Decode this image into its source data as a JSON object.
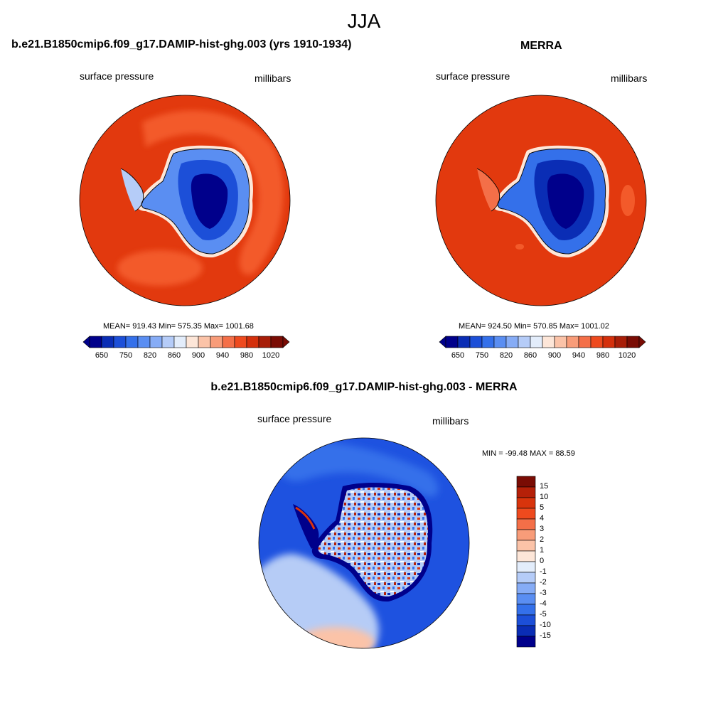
{
  "season": "JJA",
  "panels": [
    {
      "title": "b.e21.B1850cmip6.f09_g17.DAMIP-hist-ghg.003 (yrs 1910-1934)",
      "variable": "surface pressure",
      "units": "millibars",
      "stats": "MEAN= 919.43  Min= 575.35  Max= 1001.68",
      "mean": 919.43,
      "min": 575.35,
      "max": 1001.68
    },
    {
      "title": "MERRA",
      "variable": "surface pressure",
      "units": "millibars",
      "stats": "MEAN= 924.50  Min= 570.85  Max= 1001.02",
      "mean": 924.5,
      "min": 570.85,
      "max": 1001.02
    },
    {
      "title": "b.e21.B1850cmip6.f09_g17.DAMIP-hist-ghg.003 - MERRA",
      "variable": "surface pressure",
      "units": "millibars",
      "stats": "MIN = -99.48 MAX =  88.59",
      "min": -99.48,
      "max": 88.59
    }
  ],
  "colorbar_abs": {
    "tick_labels": [
      "650",
      "750",
      "820",
      "860",
      "900",
      "940",
      "980",
      "1020"
    ],
    "colors": [
      "#00008b",
      "#0a2db5",
      "#1c4fd8",
      "#3470ea",
      "#5a8ef2",
      "#86acf6",
      "#b5ccf8",
      "#e3edfb",
      "#fde6d8",
      "#fbc3a8",
      "#f89c79",
      "#f46f48",
      "#ee4a1e",
      "#d4300c",
      "#a81e08",
      "#7a0c04"
    ]
  },
  "colorbar_diff": {
    "tick_labels": [
      "15",
      "10",
      "5",
      "4",
      "3",
      "2",
      "1",
      "0",
      "-1",
      "-2",
      "-3",
      "-4",
      "-5",
      "-10",
      "-15"
    ],
    "colors": [
      "#7a0c04",
      "#b52008",
      "#d8340c",
      "#ee4a1e",
      "#f46f48",
      "#f89c79",
      "#fbc3a8",
      "#fde6d8",
      "#e3edfb",
      "#b5ccf8",
      "#86acf6",
      "#5a8ef2",
      "#3470ea",
      "#1c4fd8",
      "#0a2db5",
      "#00008b"
    ]
  },
  "palette": {
    "ocean_main": "#e2390e",
    "ocean_high": "#f35a2a",
    "diff_ocean": "#1e52e0",
    "diff_light": "#b6ccf6",
    "coast": "#000000"
  }
}
